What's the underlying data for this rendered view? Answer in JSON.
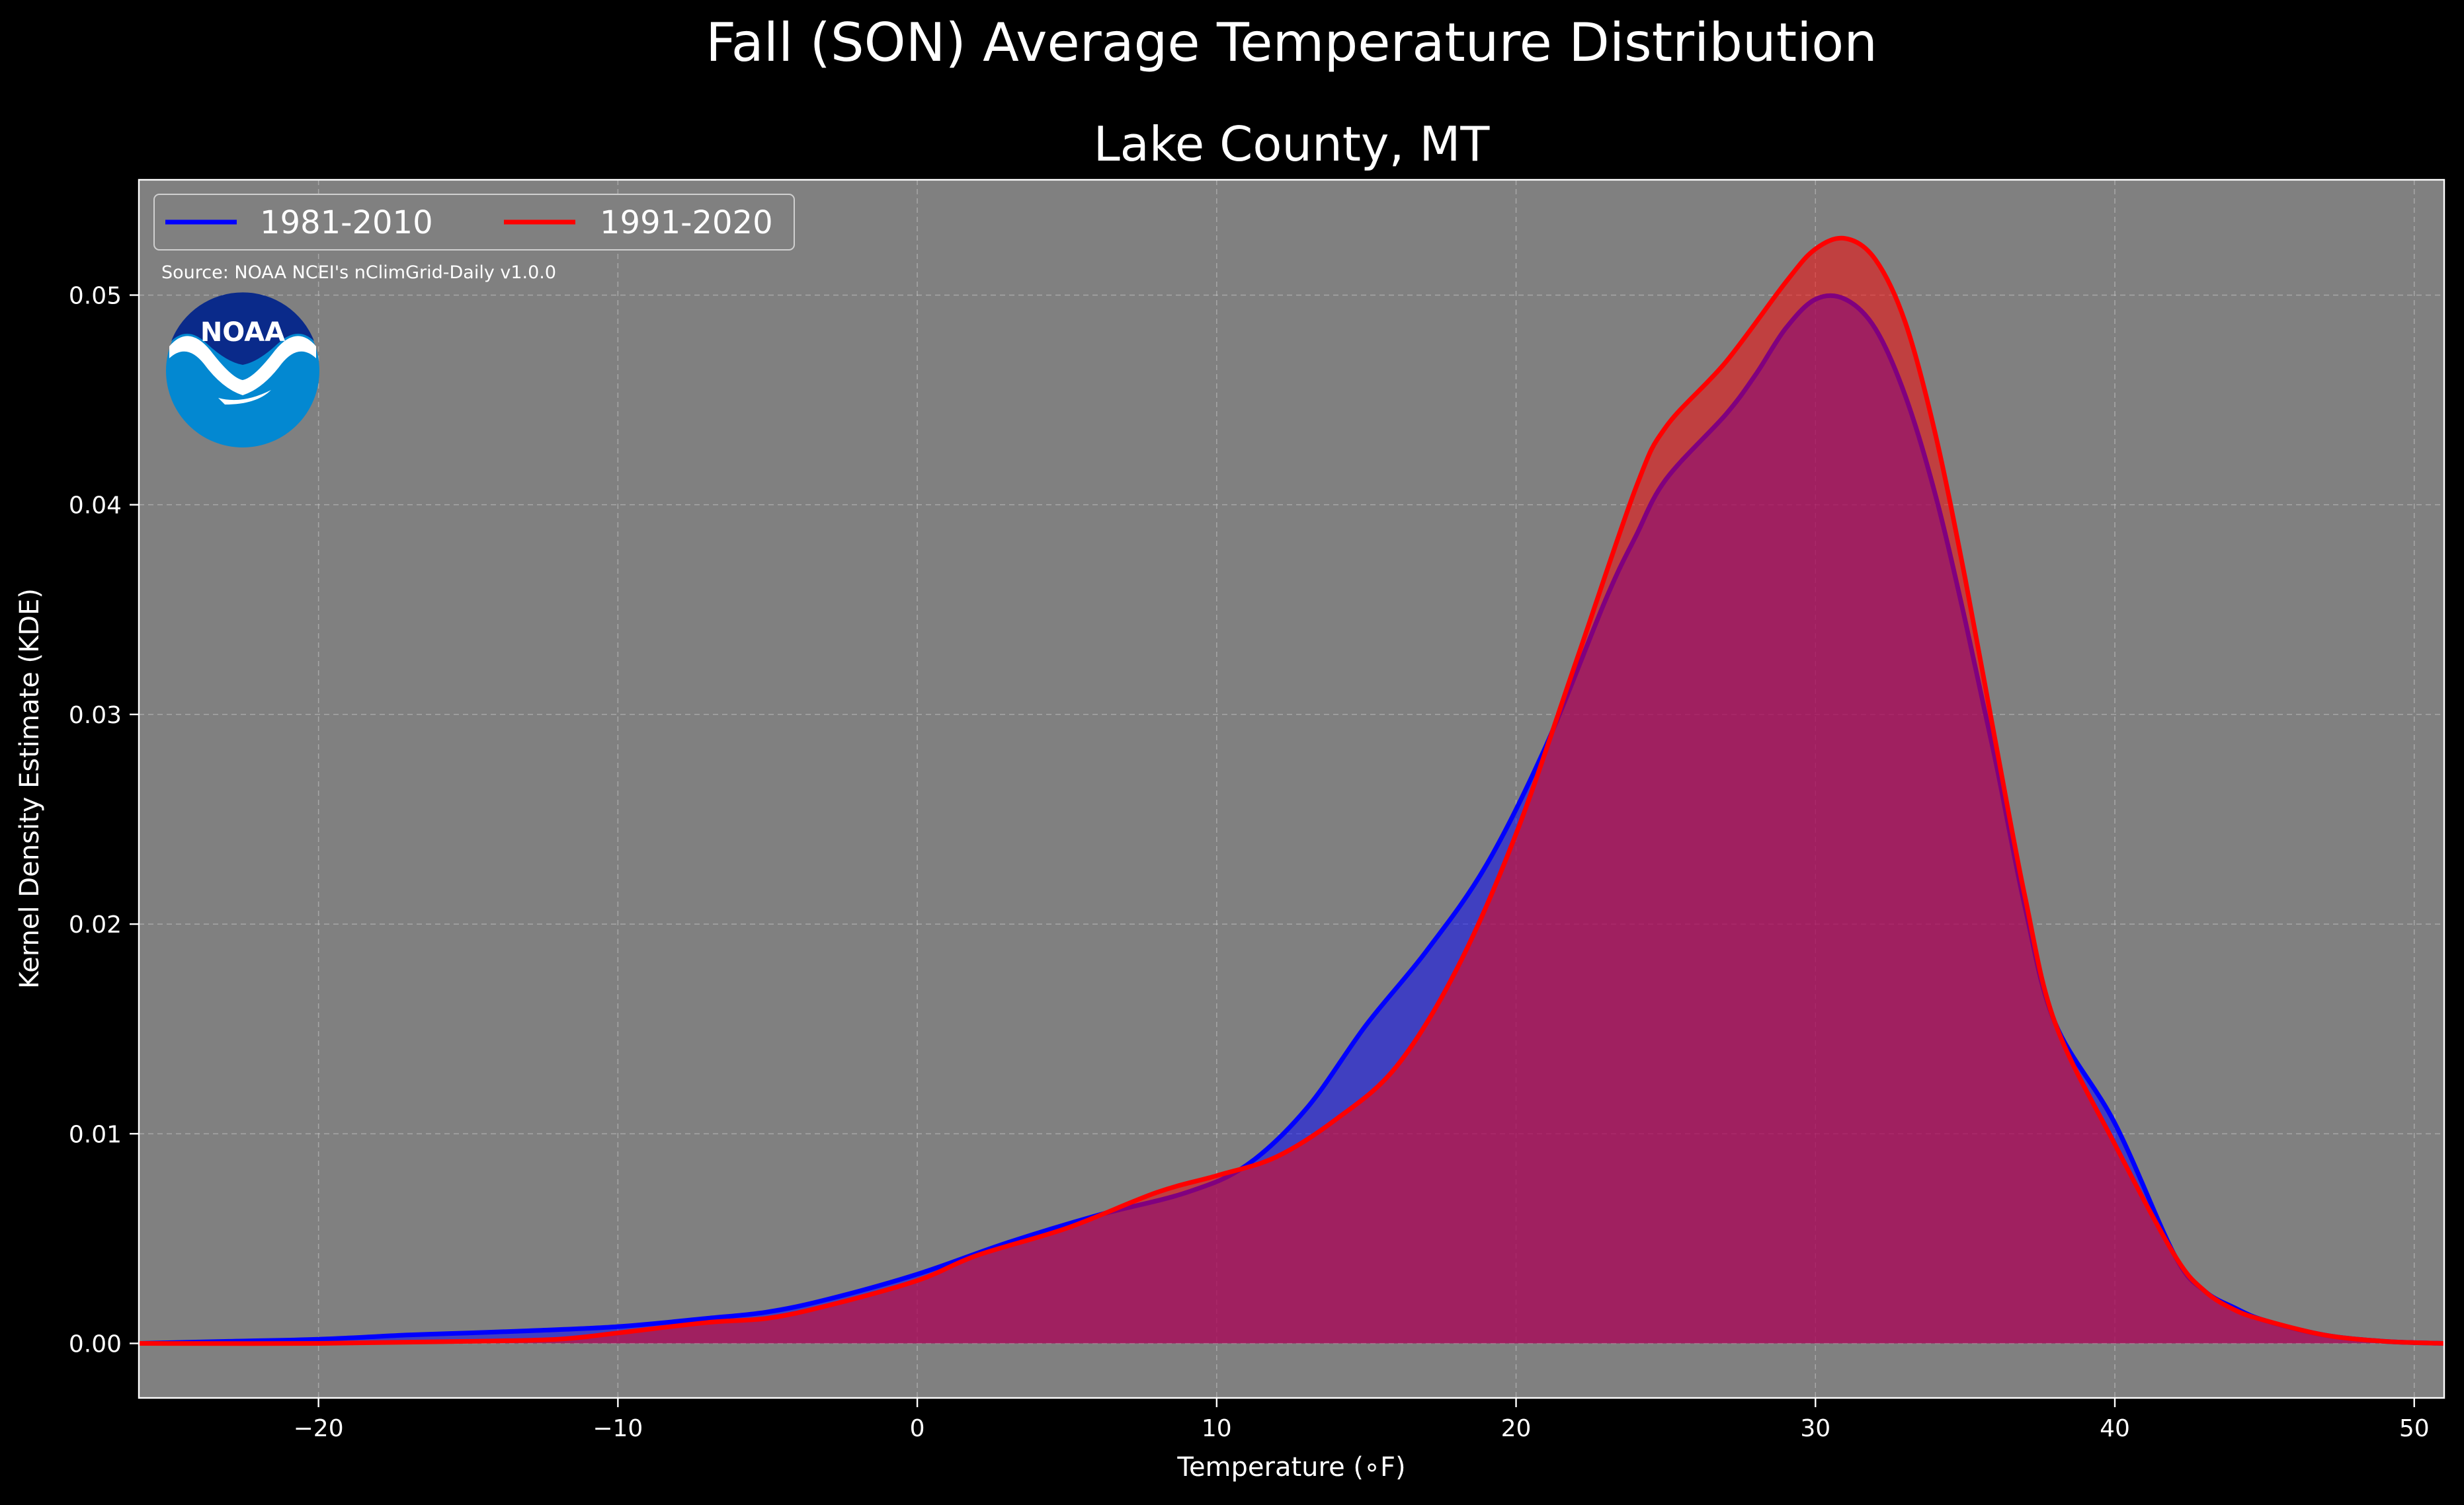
{
  "suptitle": "Fall (SON) Average Temperature Distribution",
  "chart_data": {
    "type": "area",
    "title": "Lake County, MT",
    "xlabel": "Temperature (∘F)",
    "ylabel": "Kernel Density Estimate (KDE)",
    "xlim": [
      -26,
      51
    ],
    "ylim": [
      -0.0026,
      0.0555
    ],
    "x_ticks": [
      -20,
      -10,
      0,
      10,
      20,
      30,
      40,
      50
    ],
    "x_tick_labels": [
      "−20",
      "−10",
      "0",
      "10",
      "20",
      "30",
      "40",
      "50"
    ],
    "y_ticks": [
      0.0,
      0.01,
      0.02,
      0.03,
      0.04,
      0.05
    ],
    "y_tick_labels": [
      "0.00",
      "0.01",
      "0.02",
      "0.03",
      "0.04",
      "0.05"
    ],
    "grid": true,
    "legend_position": "top-left",
    "background_color": "#808080",
    "series": [
      {
        "name": "1981-2010",
        "color": "#0000ff",
        "points": [
          [
            -26,
            0.0
          ],
          [
            -23,
            0.0001
          ],
          [
            -20,
            0.0002
          ],
          [
            -17,
            0.0004
          ],
          [
            -15,
            0.0005
          ],
          [
            -13,
            0.0006
          ],
          [
            -10,
            0.0008
          ],
          [
            -7,
            0.0012
          ],
          [
            -5,
            0.0015
          ],
          [
            -3,
            0.0021
          ],
          [
            0,
            0.0033
          ],
          [
            3,
            0.0048
          ],
          [
            6,
            0.0061
          ],
          [
            9,
            0.0072
          ],
          [
            11,
            0.0085
          ],
          [
            13,
            0.0112
          ],
          [
            15,
            0.0152
          ],
          [
            17,
            0.0187
          ],
          [
            19,
            0.0228
          ],
          [
            21,
            0.0285
          ],
          [
            23,
            0.0355
          ],
          [
            24,
            0.0385
          ],
          [
            25,
            0.0412
          ],
          [
            27,
            0.0443
          ],
          [
            28,
            0.0462
          ],
          [
            29,
            0.0484
          ],
          [
            30,
            0.0498
          ],
          [
            31,
            0.0498
          ],
          [
            32,
            0.0484
          ],
          [
            33,
            0.0452
          ],
          [
            34,
            0.0405
          ],
          [
            35,
            0.0345
          ],
          [
            36,
            0.0279
          ],
          [
            37,
            0.0208
          ],
          [
            38,
            0.0153
          ],
          [
            40,
            0.0105
          ],
          [
            42,
            0.0042
          ],
          [
            43,
            0.0025
          ],
          [
            44,
            0.0017
          ],
          [
            45,
            0.0011
          ],
          [
            47,
            0.0004
          ],
          [
            49,
            0.0001
          ],
          [
            51,
            0.0
          ]
        ]
      },
      {
        "name": "1991-2020",
        "color": "#ff0000",
        "points": [
          [
            -26,
            0.0
          ],
          [
            -20,
            0.0
          ],
          [
            -15,
            0.0001
          ],
          [
            -12,
            0.0002
          ],
          [
            -10,
            0.0005
          ],
          [
            -7,
            0.001
          ],
          [
            -5,
            0.0012
          ],
          [
            -3,
            0.0018
          ],
          [
            0,
            0.003
          ],
          [
            2,
            0.0042
          ],
          [
            5,
            0.0055
          ],
          [
            8,
            0.0072
          ],
          [
            10,
            0.008
          ],
          [
            12,
            0.0089
          ],
          [
            14,
            0.0107
          ],
          [
            16,
            0.0132
          ],
          [
            18,
            0.0178
          ],
          [
            20,
            0.0243
          ],
          [
            22,
            0.0325
          ],
          [
            24,
            0.0408
          ],
          [
            25,
            0.0437
          ],
          [
            27,
            0.0468
          ],
          [
            29,
            0.0506
          ],
          [
            30,
            0.0522
          ],
          [
            31,
            0.0527
          ],
          [
            32,
            0.0517
          ],
          [
            33,
            0.0487
          ],
          [
            34,
            0.0434
          ],
          [
            35,
            0.0365
          ],
          [
            36,
            0.0288
          ],
          [
            37,
            0.0213
          ],
          [
            38,
            0.0153
          ],
          [
            40,
            0.0095
          ],
          [
            42,
            0.0042
          ],
          [
            43,
            0.0025
          ],
          [
            44,
            0.0016
          ],
          [
            45,
            0.0011
          ],
          [
            47,
            0.0004
          ],
          [
            49,
            0.0001
          ],
          [
            51,
            0.0
          ]
        ]
      }
    ]
  },
  "source_text": "Source: NOAA NCEI's nClimGrid-Daily v1.0.0",
  "logo": {
    "text": "NOAA",
    "outer_color": "#0388d1",
    "inner_color": "#0a2a8a",
    "bird_color": "#ffffff"
  }
}
